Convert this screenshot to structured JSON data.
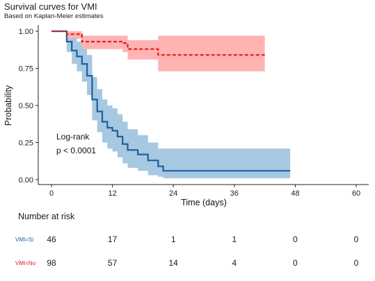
{
  "title": "Survival curves for VMI",
  "subtitle": "Based on Kaplan-Meier estimates",
  "chart_data": {
    "type": "line",
    "xlabel": "Time (days)",
    "ylabel": "Probability",
    "xlim": [
      0,
      60
    ],
    "ylim": [
      0,
      1
    ],
    "xticks": [
      0,
      12,
      24,
      36,
      48,
      60
    ],
    "yticks": [
      0,
      0.25,
      0.5,
      0.75,
      1
    ],
    "ytick_labels": [
      "0.00",
      "0.25",
      "0.50",
      "0.75",
      "1.00"
    ],
    "grid": false,
    "annotation": {
      "line1": "Log-rank",
      "line2": "p < 0.0001"
    },
    "series": [
      {
        "name": "VMI=Si",
        "color": "#1f5fa0",
        "band_color": "#a6c8e0",
        "line_style": "solid",
        "x": [
          0,
          3,
          4,
          5,
          6,
          7,
          8,
          9,
          10,
          11,
          12,
          13,
          14,
          15,
          17,
          19,
          21,
          22,
          47
        ],
        "y": [
          1.0,
          0.93,
          0.87,
          0.83,
          0.78,
          0.7,
          0.54,
          0.46,
          0.39,
          0.35,
          0.33,
          0.29,
          0.24,
          0.2,
          0.17,
          0.13,
          0.09,
          0.06,
          0.06
        ],
        "lower": [
          1.0,
          0.86,
          0.78,
          0.73,
          0.66,
          0.57,
          0.4,
          0.32,
          0.25,
          0.21,
          0.19,
          0.15,
          0.11,
          0.08,
          0.06,
          0.03,
          0.02,
          0.01,
          0.01
        ],
        "upper": [
          1.0,
          1.0,
          0.96,
          0.93,
          0.9,
          0.84,
          0.69,
          0.61,
          0.54,
          0.5,
          0.48,
          0.44,
          0.39,
          0.34,
          0.3,
          0.25,
          0.21,
          0.21,
          0.21
        ]
      },
      {
        "name": "VMI=No",
        "color": "#e31a1c",
        "band_color": "#ffb3b3",
        "line_style": "dashed",
        "x": [
          0,
          3,
          6,
          14,
          15,
          21,
          42
        ],
        "y": [
          1.0,
          0.98,
          0.93,
          0.92,
          0.88,
          0.84,
          0.84
        ],
        "lower": [
          1.0,
          0.95,
          0.88,
          0.86,
          0.81,
          0.73,
          0.73
        ],
        "upper": [
          1.0,
          1.0,
          0.97,
          0.97,
          0.94,
          0.97,
          0.97
        ]
      }
    ]
  },
  "risk_table": {
    "title": "Number at risk",
    "times": [
      0,
      12,
      24,
      36,
      48,
      60
    ],
    "rows": [
      {
        "label": "VMI=Si",
        "color": "#1f5fa0",
        "values": [
          46,
          17,
          1,
          1,
          0,
          0
        ]
      },
      {
        "label": "VMI=No",
        "color": "#e31a1c",
        "values": [
          98,
          57,
          14,
          4,
          0,
          0
        ]
      }
    ]
  }
}
